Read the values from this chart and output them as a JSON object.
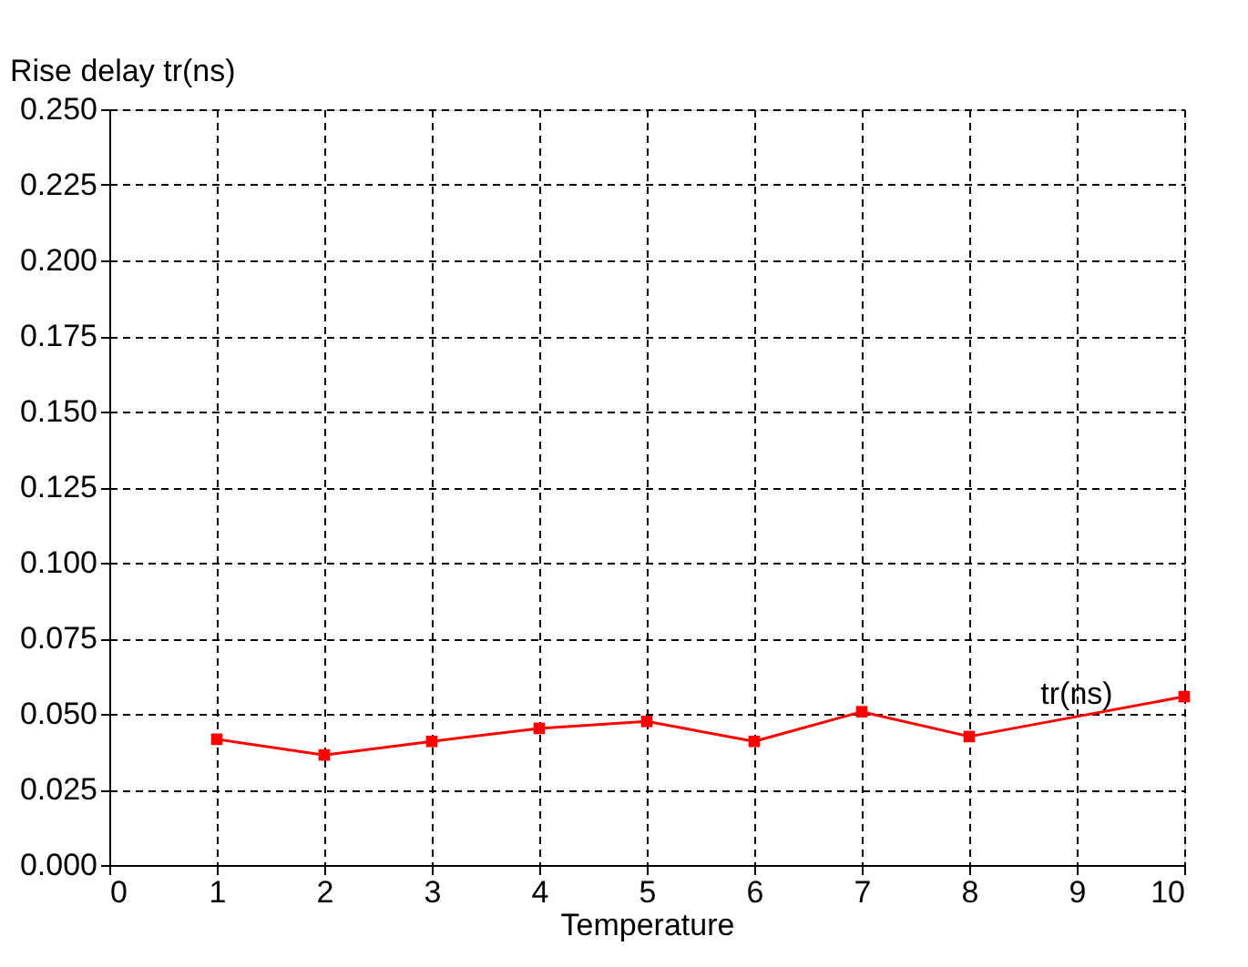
{
  "chart_data": {
    "type": "line",
    "xlabel": "Temperature",
    "ylabel": "Rise delay tr(ns)",
    "series": [
      {
        "name": "tr(ns)",
        "color": "#ff0000",
        "x": [
          1,
          2,
          3,
          4,
          5,
          6,
          7,
          8,
          10
        ],
        "values": [
          0.0416,
          0.0364,
          0.0409,
          0.0452,
          0.0475,
          0.0409,
          0.0507,
          0.0425,
          0.0557
        ]
      }
    ],
    "xlim": [
      0,
      10
    ],
    "xticks": [
      0,
      1,
      2,
      3,
      4,
      5,
      6,
      7,
      8,
      9,
      10
    ],
    "ylim": [
      0,
      0.25
    ],
    "yticks": [
      {
        "value": 0,
        "label": "0.000"
      },
      {
        "value": 0.025,
        "label": "0.025"
      },
      {
        "value": 0.05,
        "label": "0.050"
      },
      {
        "value": 0.075,
        "label": "0.075"
      },
      {
        "value": 0.1,
        "label": "0.100"
      },
      {
        "value": 0.125,
        "label": "0.125"
      },
      {
        "value": 0.15,
        "label": "0.150"
      },
      {
        "value": 0.175,
        "label": "0.175"
      },
      {
        "value": 0.2,
        "label": "0.200"
      },
      {
        "value": 0.225,
        "label": "0.225"
      },
      {
        "value": 0.25,
        "label": "0.250"
      }
    ],
    "grid": true,
    "marker": "square",
    "line_style": "solid"
  }
}
